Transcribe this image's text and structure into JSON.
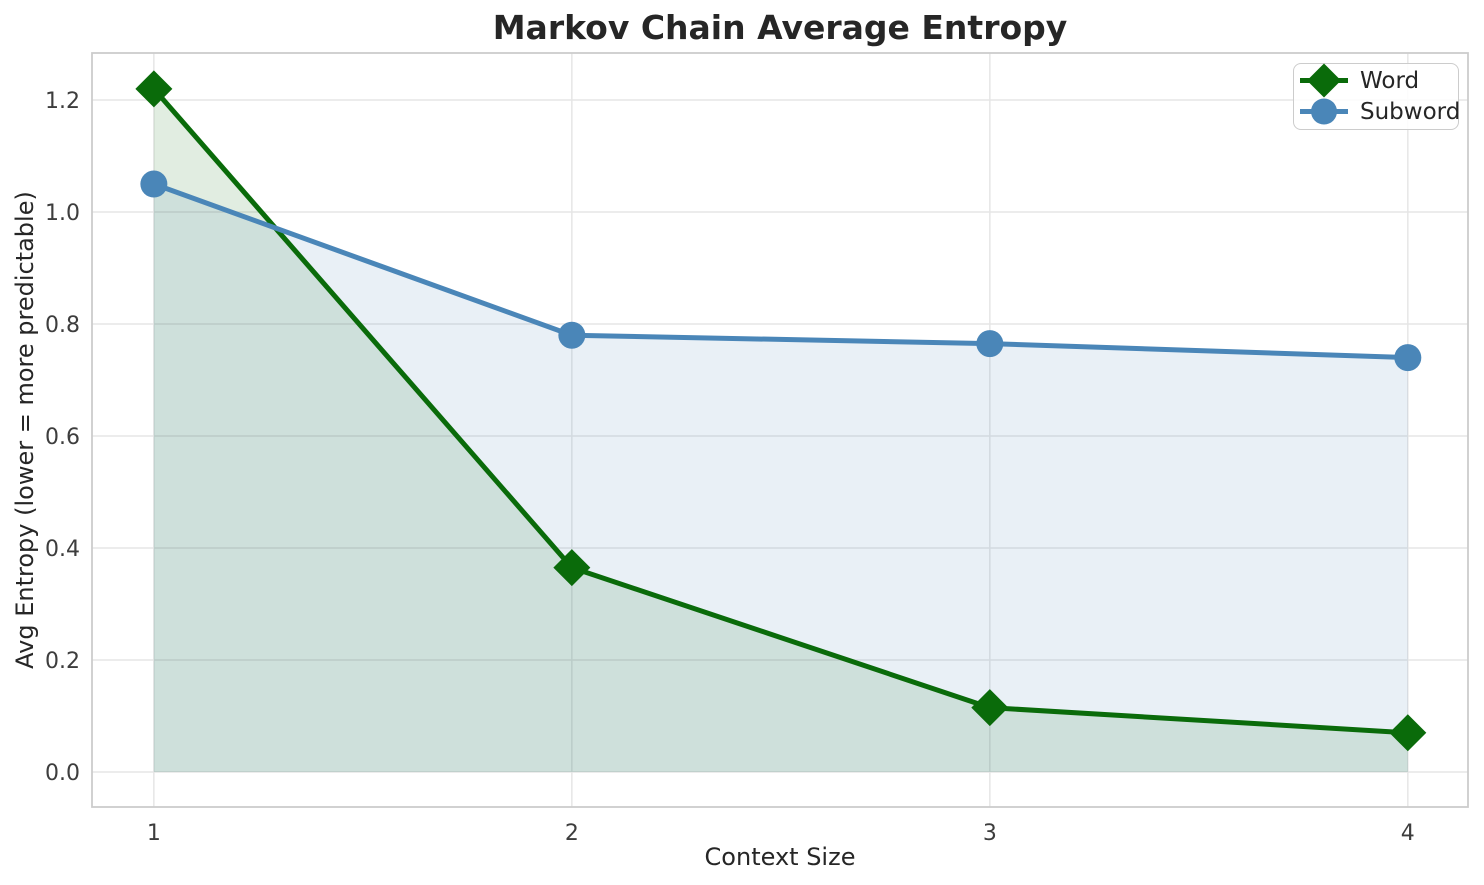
{
  "figure": {
    "title": "Markov Chain Average Entropy"
  },
  "chart_data": {
    "type": "line",
    "title": "Markov Chain Average Entropy",
    "xlabel": "Context Size",
    "ylabel": "Avg Entropy (lower = more predictable)",
    "x": [
      1,
      2,
      3,
      4
    ],
    "series": [
      {
        "name": "Word",
        "marker": "diamond",
        "color": "#0a6b0a",
        "values": [
          1.22,
          0.365,
          0.115,
          0.07
        ],
        "fill_to_zero": true
      },
      {
        "name": "Subword",
        "marker": "circle",
        "color": "#4a86b8",
        "values": [
          1.05,
          0.78,
          0.765,
          0.74
        ],
        "fill_to_zero": true
      }
    ],
    "xticks": [
      1,
      2,
      3,
      4
    ],
    "xtick_labels": [
      "1",
      "2",
      "3",
      "4"
    ],
    "yticks": [
      0.0,
      0.2,
      0.4,
      0.6,
      0.8,
      1.0,
      1.2
    ],
    "ytick_labels": [
      "0.0",
      "0.2",
      "0.4",
      "0.6",
      "0.8",
      "1.0",
      "1.2"
    ],
    "xlim": [
      0.852,
      4.144
    ],
    "ylim": [
      -0.0625,
      1.284
    ],
    "grid": true,
    "legend_position": "upper right",
    "fill_opacity": 0.12,
    "line_width": 5,
    "styles": {
      "grid_color": "#e6e6e6",
      "spine_color": "#cccccc",
      "title_color": "#262626",
      "tick_color": "#3d3d3d",
      "background": "#ffffff"
    }
  }
}
